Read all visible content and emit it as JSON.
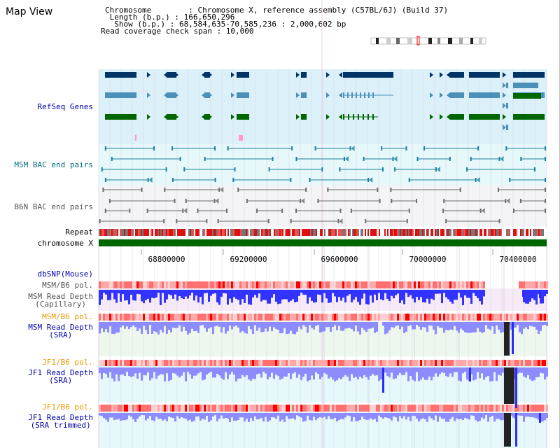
{
  "app": {
    "title": "Map View"
  },
  "info": {
    "chromosome": "Chromosome        : Chromosome X, reference assembly (C57BL/6J) (Build 37)",
    "length": " Length (b.p.) : 166,650,296",
    "show": "  Show (b.p.) : 68,584,635-70,585,236 : 2,000,602 bp",
    "coverage": "Read coverage check span : 10,000"
  },
  "tracks": {
    "refseq": "RefSeq Genes",
    "msm_bac": "MSM BAC end pairs",
    "b6n_bac": "B6N BAC end pairs",
    "repeat": "Repeat",
    "chromosome": "chromosome X",
    "dbsnp": "dbSNP(Mouse)",
    "msm_b6_pol": "MSM/B6 pol.",
    "msm_depth_cap_1": "MSM Read Depth",
    "msm_depth_cap_2": "(Capillary)",
    "msm_b6_pol_2": "MSM/B6 pol.",
    "msm_depth_sra_1": "MSM Read Depth",
    "msm_depth_sra_2": "(SRA)",
    "jf1_b6_pol": "JF1/B6 pol.",
    "jf1_depth_sra_1": "JF1 Read Depth",
    "jf1_depth_sra_2": "(SRA)",
    "jf1_b6_pol_2": "JF1/B6 pol.",
    "jf1_depth_trim_1": "JF1 Read Depth",
    "jf1_depth_trim_2": "(SRA trimmed)"
  },
  "ruler": {
    "ticks": [
      "68800000",
      "69200000",
      "69600000",
      "70000000",
      "70400000"
    ]
  },
  "colors": {
    "refseq_bg": "#dcf0fa",
    "msm_bac_bg": "#e6f8fa",
    "b6n_bac_bg": "#f4f4f6",
    "label_blue": "#0000aa",
    "label_teal": "#006b80",
    "label_gray": "#555555",
    "label_orange": "#e69900",
    "gene_navy": "#003366",
    "gene_steel": "#4a90b8",
    "gene_green": "#006600",
    "chromosome_green": "#006600",
    "depth_blue": "#3333ff",
    "depth_light": "#8c8cff"
  }
}
